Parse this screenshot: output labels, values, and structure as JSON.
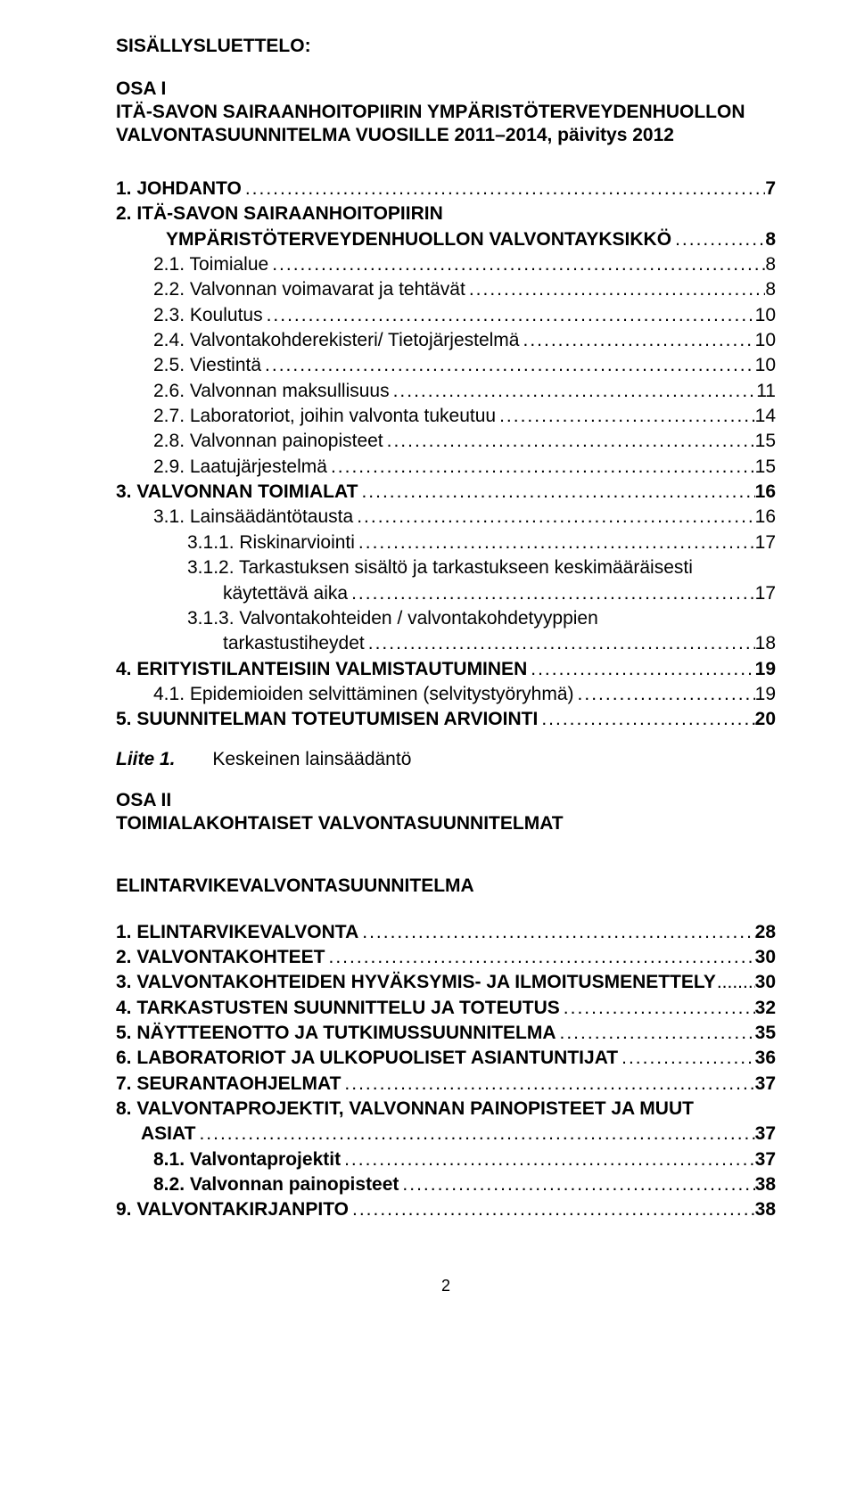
{
  "header": {
    "title": "SISÄLLYSLUETTELO:",
    "osa1_label": "OSA I",
    "osa1_title_1": "ITÄ-SAVON SAIRAANHOITOPIIRIN YMPÄRISTÖTERVEYDENHUOLLON",
    "osa1_title_2": "VALVONTASUUNNITELMA VUOSILLE 2011–2014, päivitys 2012"
  },
  "toc1": [
    {
      "label": "1. JOHDANTO",
      "page": "7",
      "bold": true,
      "indent": 0
    },
    {
      "label": "2. ITÄ-SAVON SAIRAANHOITOPIIRIN",
      "bold": true,
      "indent": 0,
      "noPage": true
    },
    {
      "label": "YMPÄRISTÖTERVEYDENHUOLLON VALVONTAYKSIKKÖ",
      "page": "8",
      "bold": true,
      "indent": 0,
      "contIndent": true
    },
    {
      "label": "2.1.   Toimialue",
      "page": "8",
      "bold": false,
      "indent": 1
    },
    {
      "label": "2.2.   Valvonnan voimavarat ja tehtävät",
      "page": "8",
      "bold": false,
      "indent": 1
    },
    {
      "label": "2.3.   Koulutus",
      "page": "10",
      "bold": false,
      "indent": 1
    },
    {
      "label": "2.4.   Valvontakohderekisteri/ Tietojärjestelmä",
      "page": "10",
      "bold": false,
      "indent": 1
    },
    {
      "label": "2.5.   Viestintä",
      "page": "10",
      "bold": false,
      "indent": 1
    },
    {
      "label": "2.6.   Valvonnan maksullisuus",
      "page": "11",
      "bold": false,
      "indent": 1
    },
    {
      "label": "2.7.   Laboratoriot, joihin valvonta tukeutuu",
      "page": "14",
      "bold": false,
      "indent": 1
    },
    {
      "label": "2.8.   Valvonnan painopisteet",
      "page": "15",
      "bold": false,
      "indent": 1
    },
    {
      "label": "2.9.   Laatujärjestelmä",
      "page": "15",
      "bold": false,
      "indent": 1
    },
    {
      "label": "3. VALVONNAN TOIMIALAT",
      "page": "16",
      "bold": true,
      "indent": 0
    },
    {
      "label": "3.1.   Lainsäädäntötausta",
      "page": "16",
      "bold": false,
      "indent": 1
    },
    {
      "label": "3.1.1. Riskinarviointi",
      "page": "17",
      "bold": false,
      "indent": 2
    },
    {
      "label": "3.1.2. Tarkastuksen sisältö ja tarkastukseen keskimääräisesti",
      "bold": false,
      "indent": 2,
      "noPage": true
    },
    {
      "label": "käytettävä aika",
      "page": "17",
      "bold": false,
      "indent": 3
    },
    {
      "label": "3.1.3. Valvontakohteiden / valvontakohdetyyppien",
      "bold": false,
      "indent": 2,
      "noPage": true
    },
    {
      "label": "tarkastustiheydet",
      "page": "18",
      "bold": false,
      "indent": 3
    },
    {
      "label": "4. ERITYISTILANTEISIIN VALMISTAUTUMINEN",
      "page": "19",
      "bold": true,
      "indent": 0
    },
    {
      "label": "4.1.   Epidemioiden selvittäminen (selvitystyöryhmä)",
      "page": "19",
      "bold": false,
      "indent": 1
    },
    {
      "label": "5. SUUNNITELMAN TOTEUTUMISEN ARVIOINTI",
      "page": "20",
      "bold": true,
      "indent": 0
    }
  ],
  "liite": {
    "label": "Liite 1.",
    "text": "Keskeinen lainsäädäntö"
  },
  "osa2": {
    "label": "OSA II",
    "title": "TOIMIALAKOHTAISET VALVONTASUUNNITELMAT"
  },
  "section2_title": "ELINTARVIKEVALVONTASUUNNITELMA",
  "toc2": [
    {
      "label": "1. ELINTARVIKEVALVONTA",
      "page": "28",
      "bold": true,
      "indent": 0
    },
    {
      "label": "2. VALVONTAKOHTEET",
      "page": "30",
      "bold": true,
      "indent": 0
    },
    {
      "label": "3. VALVONTAKOHTEIDEN HYVÄKSYMIS- JA ILMOITUSMENETTELY",
      "page": "30",
      "bold": true,
      "indent": 0,
      "tight": true
    },
    {
      "label": "4. TARKASTUSTEN SUUNNITTELU JA TOTEUTUS",
      "page": "32",
      "bold": true,
      "indent": 0
    },
    {
      "label": "5. NÄYTTEENOTTO JA TUTKIMUSSUUNNITELMA",
      "page": "35",
      "bold": true,
      "indent": 0
    },
    {
      "label": "6. LABORATORIOT JA ULKOPUOLISET ASIANTUNTIJAT",
      "page": "36",
      "bold": true,
      "indent": 0
    },
    {
      "label": "7. SEURANTAOHJELMAT",
      "page": "37",
      "bold": true,
      "indent": 0
    },
    {
      "label": "8. VALVONTAPROJEKTIT, VALVONNAN PAINOPISTEET JA MUUT",
      "bold": true,
      "indent": 0,
      "noPage": true
    },
    {
      "label": "ASIAT",
      "page": "37",
      "bold": true,
      "indent": 0,
      "contIndent2": true
    },
    {
      "label": "8.1. Valvontaprojektit",
      "page": "37",
      "bold": true,
      "indent": 1
    },
    {
      "label": "8.2. Valvonnan painopisteet",
      "page": "38",
      "bold": true,
      "indent": 1
    },
    {
      "label": "9. VALVONTAKIRJANPITO",
      "page": "38",
      "bold": true,
      "indent": 0
    }
  ],
  "pagenum": "2"
}
